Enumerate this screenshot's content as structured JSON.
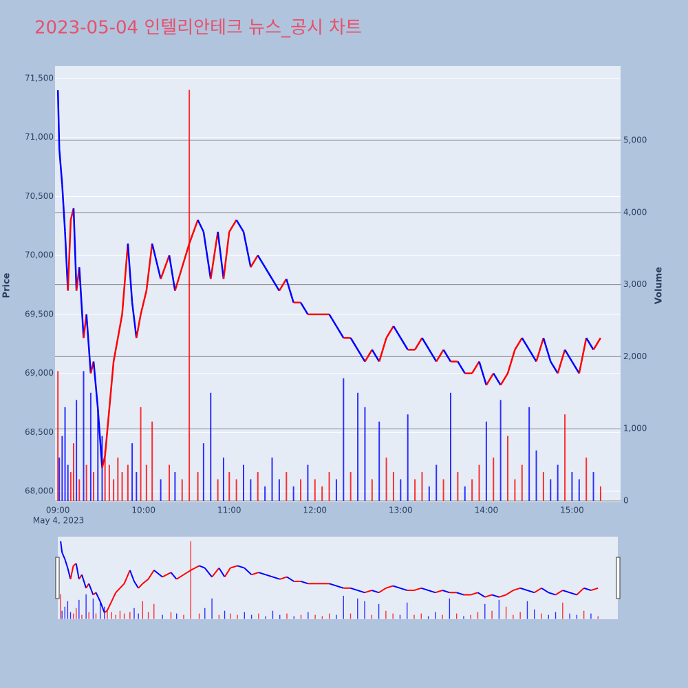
{
  "chart_data": {
    "type": "line",
    "title": "2023-05-04 인텔리안테크 뉴스_공시 차트",
    "title_color": "#e8506a",
    "ylabel": "Price",
    "y2label": "Volume",
    "x_date_label": "May 4, 2023",
    "x": [
      "2023-05-04 09:00",
      "2023-05-04 09:01",
      "2023-05-04 09:03",
      "2023-05-04 09:05",
      "2023-05-04 09:07",
      "2023-05-04 09:09",
      "2023-05-04 09:11",
      "2023-05-04 09:13",
      "2023-05-04 09:15",
      "2023-05-04 09:18",
      "2023-05-04 09:20",
      "2023-05-04 09:23",
      "2023-05-04 09:25",
      "2023-05-04 09:28",
      "2023-05-04 09:31",
      "2023-05-04 09:33",
      "2023-05-04 09:36",
      "2023-05-04 09:39",
      "2023-05-04 09:42",
      "2023-05-04 09:45",
      "2023-05-04 09:49",
      "2023-05-04 09:52",
      "2023-05-04 09:55",
      "2023-05-04 09:58",
      "2023-05-04 10:02",
      "2023-05-04 10:06",
      "2023-05-04 10:12",
      "2023-05-04 10:18",
      "2023-05-04 10:22",
      "2023-05-04 10:27",
      "2023-05-04 10:32",
      "2023-05-04 10:38",
      "2023-05-04 10:42",
      "2023-05-04 10:47",
      "2023-05-04 10:52",
      "2023-05-04 10:56",
      "2023-05-04 11:00",
      "2023-05-04 11:05",
      "2023-05-04 11:10",
      "2023-05-04 11:15",
      "2023-05-04 11:20",
      "2023-05-04 11:25",
      "2023-05-04 11:30",
      "2023-05-04 11:35",
      "2023-05-04 11:40",
      "2023-05-04 11:45",
      "2023-05-04 11:50",
      "2023-05-04 11:55",
      "2023-05-04 12:00",
      "2023-05-04 12:05",
      "2023-05-04 12:10",
      "2023-05-04 12:15",
      "2023-05-04 12:20",
      "2023-05-04 12:25",
      "2023-05-04 12:30",
      "2023-05-04 12:35",
      "2023-05-04 12:40",
      "2023-05-04 12:45",
      "2023-05-04 12:50",
      "2023-05-04 12:55",
      "2023-05-04 13:00",
      "2023-05-04 13:05",
      "2023-05-04 13:10",
      "2023-05-04 13:15",
      "2023-05-04 13:20",
      "2023-05-04 13:25",
      "2023-05-04 13:30",
      "2023-05-04 13:35",
      "2023-05-04 13:40",
      "2023-05-04 13:45",
      "2023-05-04 13:50",
      "2023-05-04 13:55",
      "2023-05-04 14:00",
      "2023-05-04 14:05",
      "2023-05-04 14:10",
      "2023-05-04 14:15",
      "2023-05-04 14:20",
      "2023-05-04 14:25",
      "2023-05-04 14:30",
      "2023-05-04 14:35",
      "2023-05-04 14:40",
      "2023-05-04 14:45",
      "2023-05-04 14:50",
      "2023-05-04 14:55",
      "2023-05-04 15:00",
      "2023-05-04 15:05",
      "2023-05-04 15:10",
      "2023-05-04 15:15",
      "2023-05-04 15:20"
    ],
    "series": [
      {
        "up_color": "#ff0000",
        "down_color": "#0000ff",
        "values": [
          71400,
          70900,
          70600,
          70200,
          69700,
          70300,
          70400,
          69700,
          69900,
          69300,
          69500,
          69000,
          69100,
          68700,
          68200,
          68300,
          68700,
          69100,
          69300,
          69500,
          70100,
          69600,
          69300,
          69500,
          69700,
          70100,
          69800,
          70000,
          69700,
          69900,
          70100,
          70300,
          70200,
          69800,
          70200,
          69800,
          70200,
          70300,
          70200,
          69900,
          70000,
          69900,
          69800,
          69700,
          69800,
          69600,
          69600,
          69500,
          69500,
          69500,
          69500,
          69400,
          69300,
          69300,
          69200,
          69100,
          69200,
          69100,
          69300,
          69400,
          69300,
          69200,
          69200,
          69300,
          69200,
          69100,
          69200,
          69100,
          69100,
          69000,
          69000,
          69100,
          68900,
          69000,
          68900,
          69000,
          69200,
          69300,
          69200,
          69100,
          69300,
          69100,
          69000,
          69200,
          69100,
          69000,
          69300,
          69200,
          69300
        ]
      },
      {
        "axis": "y2",
        "up_color": "#f4a0a0",
        "down_color": "#a0a8f4",
        "values": [
          1800,
          600,
          900,
          1300,
          500,
          400,
          800,
          1400,
          300,
          1800,
          500,
          1500,
          400,
          1300,
          900,
          700,
          500,
          300,
          600,
          400,
          500,
          800,
          400,
          1300,
          500,
          1100,
          300,
          500,
          400,
          300,
          5700,
          400,
          800,
          1500,
          300,
          600,
          400,
          300,
          500,
          300,
          400,
          200,
          600,
          300,
          400,
          200,
          300,
          500,
          300,
          200,
          400,
          300,
          1700,
          400,
          1500,
          1300,
          300,
          1100,
          600,
          400,
          300,
          1200,
          300,
          400,
          200,
          500,
          300,
          1500,
          400,
          200,
          300,
          500,
          1100,
          600,
          1400,
          900,
          300,
          500,
          1300,
          700,
          400,
          300,
          500,
          1200,
          400,
          300,
          600,
          400,
          200
        ]
      }
    ],
    "xlim": [
      "2023-05-04 08:58",
      "2023-05-04 15:34"
    ],
    "xticks": [
      {
        "value": "2023-05-04 09:00",
        "label": "09:00"
      },
      {
        "value": "2023-05-04 10:00",
        "label": "10:00"
      },
      {
        "value": "2023-05-04 11:00",
        "label": "11:00"
      },
      {
        "value": "2023-05-04 12:00",
        "label": "12:00"
      },
      {
        "value": "2023-05-04 13:00",
        "label": "13:00"
      },
      {
        "value": "2023-05-04 14:00",
        "label": "14:00"
      },
      {
        "value": "2023-05-04 15:00",
        "label": "15:00"
      }
    ],
    "ylim": [
      67907,
      71605
    ],
    "yticks": [
      {
        "value": 68000,
        "label": "68,000"
      },
      {
        "value": 68500,
        "label": "68,500"
      },
      {
        "value": 69000,
        "label": "69,000"
      },
      {
        "value": 69500,
        "label": "69,500"
      },
      {
        "value": 70000,
        "label": "70,000"
      },
      {
        "value": 70500,
        "label": "70,500"
      },
      {
        "value": 71000,
        "label": "71,000"
      },
      {
        "value": 71500,
        "label": "71,500"
      }
    ],
    "y2lim": [
      -19,
      6031
    ],
    "y2ticks": [
      0,
      {
        "value": 1000,
        "label": "1,000"
      },
      {
        "value": 2000,
        "label": "2,000"
      },
      {
        "value": 3000,
        "label": "3,000"
      },
      {
        "value": 4000,
        "label": "4,000"
      },
      {
        "value": 5000,
        "label": "5,000"
      }
    ],
    "grid": true
  }
}
